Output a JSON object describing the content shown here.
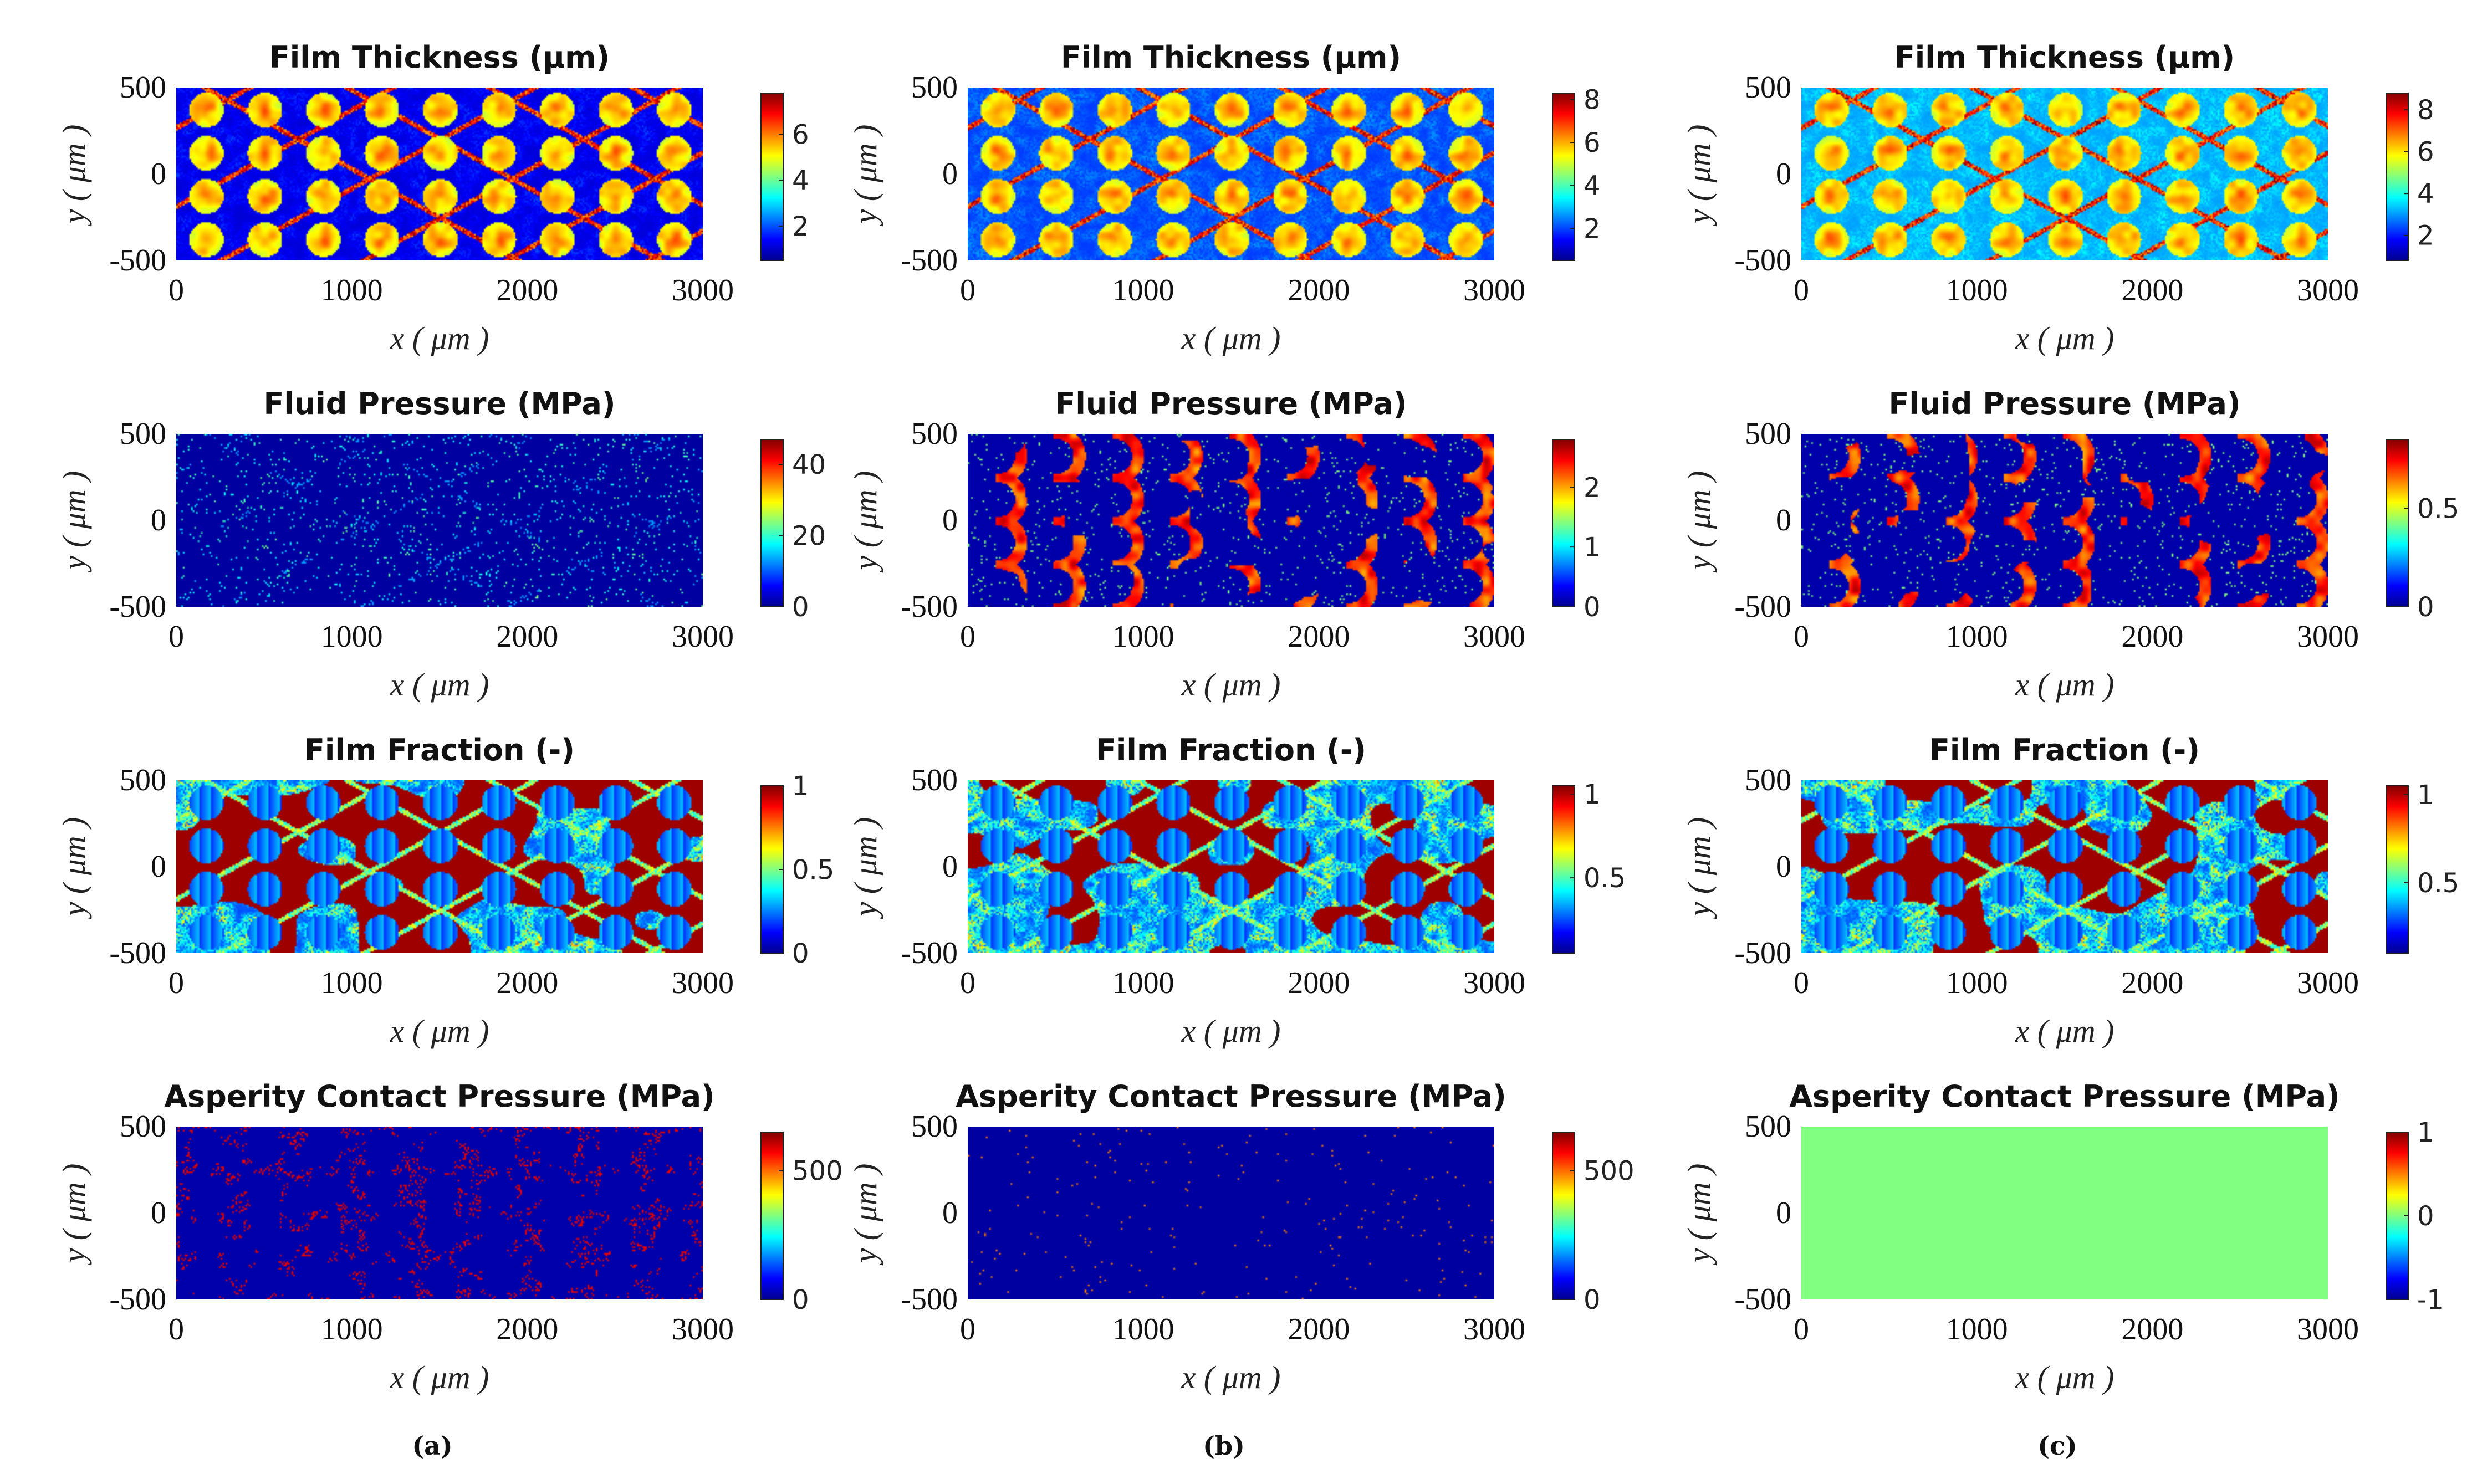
{
  "figure": {
    "captions": [
      "(a)",
      "(b)",
      "(c)"
    ]
  },
  "colormap": {
    "name": "jet",
    "stops": [
      "#00008f",
      "#0000ff",
      "#0080ff",
      "#00ffff",
      "#80ff80",
      "#ffff00",
      "#ff8000",
      "#ff0000",
      "#800000"
    ]
  },
  "chart_data": [
    {
      "type": "heatmap",
      "row": 0,
      "col": 0,
      "pattern": "thickness",
      "variant": 0,
      "title": "Film Thickness (μm)",
      "xlabel": "x ( μm )",
      "ylabel": "y ( μm )",
      "xlim": [
        0,
        3000
      ],
      "ylim": [
        -500,
        500
      ],
      "xticks": [
        0,
        1000,
        2000,
        3000
      ],
      "yticks": [
        500,
        0,
        -500
      ],
      "clim": [
        0.5,
        7.8
      ],
      "cbar_ticks": [
        2,
        4,
        6
      ]
    },
    {
      "type": "heatmap",
      "row": 0,
      "col": 1,
      "pattern": "thickness",
      "variant": 1,
      "title": "Film Thickness (μm)",
      "xlabel": "x ( μm )",
      "ylabel": "y ( μm )",
      "xlim": [
        0,
        3000
      ],
      "ylim": [
        -500,
        500
      ],
      "xticks": [
        0,
        1000,
        2000,
        3000
      ],
      "yticks": [
        500,
        0,
        -500
      ],
      "clim": [
        0.5,
        8.3
      ],
      "cbar_ticks": [
        2,
        4,
        6,
        8
      ]
    },
    {
      "type": "heatmap",
      "row": 0,
      "col": 2,
      "pattern": "thickness",
      "variant": 2,
      "title": "Film Thickness (μm)",
      "xlabel": "x ( μm )",
      "ylabel": "y ( μm )",
      "xlim": [
        0,
        3000
      ],
      "ylim": [
        -500,
        500
      ],
      "xticks": [
        0,
        1000,
        2000,
        3000
      ],
      "yticks": [
        500,
        0,
        -500
      ],
      "clim": [
        0.8,
        8.8
      ],
      "cbar_ticks": [
        2,
        4,
        6,
        8
      ]
    },
    {
      "type": "heatmap",
      "row": 1,
      "col": 0,
      "pattern": "pressure",
      "variant": 0,
      "title": "Fluid Pressure (MPa)",
      "xlabel": "x ( μm )",
      "ylabel": "y ( μm )",
      "xlim": [
        0,
        3000
      ],
      "ylim": [
        -500,
        500
      ],
      "xticks": [
        0,
        1000,
        2000,
        3000
      ],
      "yticks": [
        500,
        0,
        -500
      ],
      "clim": [
        0,
        47
      ],
      "cbar_ticks": [
        0,
        20,
        40
      ]
    },
    {
      "type": "heatmap",
      "row": 1,
      "col": 1,
      "pattern": "pressure",
      "variant": 1,
      "title": "Fluid Pressure (MPa)",
      "xlabel": "x ( μm )",
      "ylabel": "y ( μm )",
      "xlim": [
        0,
        3000
      ],
      "ylim": [
        -500,
        500
      ],
      "xticks": [
        0,
        1000,
        2000,
        3000
      ],
      "yticks": [
        500,
        0,
        -500
      ],
      "clim": [
        0,
        2.8
      ],
      "cbar_ticks": [
        0,
        1,
        2
      ]
    },
    {
      "type": "heatmap",
      "row": 1,
      "col": 2,
      "pattern": "pressure",
      "variant": 2,
      "title": "Fluid Pressure (MPa)",
      "xlabel": "x ( μm )",
      "ylabel": "y ( μm )",
      "xlim": [
        0,
        3000
      ],
      "ylim": [
        -500,
        500
      ],
      "xticks": [
        0,
        1000,
        2000,
        3000
      ],
      "yticks": [
        500,
        0,
        -500
      ],
      "clim": [
        0,
        0.85
      ],
      "cbar_ticks": [
        0,
        0.5
      ]
    },
    {
      "type": "heatmap",
      "row": 2,
      "col": 0,
      "pattern": "fraction",
      "variant": 0,
      "title": "Film Fraction (-)",
      "xlabel": "x ( μm )",
      "ylabel": "y ( μm )",
      "xlim": [
        0,
        3000
      ],
      "ylim": [
        -500,
        500
      ],
      "xticks": [
        0,
        1000,
        2000,
        3000
      ],
      "yticks": [
        500,
        0,
        -500
      ],
      "clim": [
        0,
        1
      ],
      "cbar_ticks": [
        0,
        0.5,
        1
      ]
    },
    {
      "type": "heatmap",
      "row": 2,
      "col": 1,
      "pattern": "fraction",
      "variant": 1,
      "title": "Film Fraction (-)",
      "xlabel": "x ( μm )",
      "ylabel": "y ( μm )",
      "xlim": [
        0,
        3000
      ],
      "ylim": [
        -500,
        500
      ],
      "xticks": [
        0,
        1000,
        2000,
        3000
      ],
      "yticks": [
        500,
        0,
        -500
      ],
      "clim": [
        0.05,
        1.05
      ],
      "cbar_ticks": [
        0.5,
        1
      ]
    },
    {
      "type": "heatmap",
      "row": 2,
      "col": 2,
      "pattern": "fraction",
      "variant": 2,
      "title": "Film Fraction (-)",
      "xlabel": "x ( μm )",
      "ylabel": "y ( μm )",
      "xlim": [
        0,
        3000
      ],
      "ylim": [
        -500,
        500
      ],
      "xticks": [
        0,
        1000,
        2000,
        3000
      ],
      "yticks": [
        500,
        0,
        -500
      ],
      "clim": [
        0.1,
        1.05
      ],
      "cbar_ticks": [
        0.5,
        1
      ]
    },
    {
      "type": "heatmap",
      "row": 3,
      "col": 0,
      "pattern": "contact",
      "variant": 0,
      "title": "Asperity Contact Pressure (MPa)",
      "xlabel": "x ( μm )",
      "ylabel": "y ( μm )",
      "xlim": [
        0,
        3000
      ],
      "ylim": [
        -500,
        500
      ],
      "xticks": [
        0,
        1000,
        2000,
        3000
      ],
      "yticks": [
        500,
        0,
        -500
      ],
      "clim": [
        0,
        650
      ],
      "cbar_ticks": [
        0,
        500
      ]
    },
    {
      "type": "heatmap",
      "row": 3,
      "col": 1,
      "pattern": "contact",
      "variant": 1,
      "title": "Asperity Contact Pressure (MPa)",
      "xlabel": "x ( μm )",
      "ylabel": "y ( μm )",
      "xlim": [
        0,
        3000
      ],
      "ylim": [
        -500,
        500
      ],
      "xticks": [
        0,
        1000,
        2000,
        3000
      ],
      "yticks": [
        500,
        0,
        -500
      ],
      "clim": [
        0,
        650
      ],
      "cbar_ticks": [
        0,
        500
      ]
    },
    {
      "type": "heatmap",
      "row": 3,
      "col": 2,
      "pattern": "uniform",
      "variant": 2,
      "title": "Asperity Contact Pressure (MPa)",
      "xlabel": "x ( μm )",
      "ylabel": "y ( μm )",
      "xlim": [
        0,
        3000
      ],
      "ylim": [
        -500,
        500
      ],
      "xticks": [
        0,
        1000,
        2000,
        3000
      ],
      "yticks": [
        500,
        0,
        -500
      ],
      "clim": [
        -1,
        1
      ],
      "cbar_ticks": [
        -1,
        0,
        1
      ],
      "uniform_value": 0
    }
  ]
}
